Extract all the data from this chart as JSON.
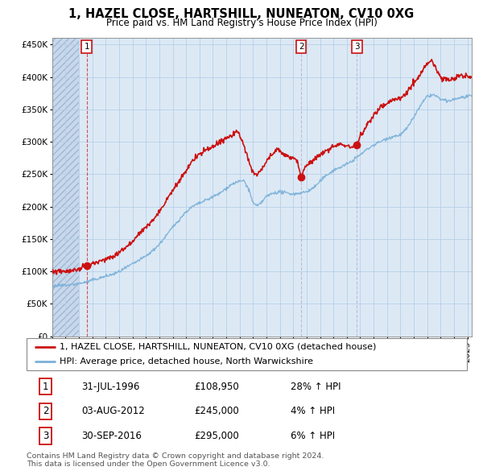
{
  "title": "1, HAZEL CLOSE, HARTSHILL, NUNEATON, CV10 0XG",
  "subtitle": "Price paid vs. HM Land Registry's House Price Index (HPI)",
  "xlim_start": 1994.0,
  "xlim_end": 2025.3,
  "ylim": [
    0,
    460000
  ],
  "yticks": [
    0,
    50000,
    100000,
    150000,
    200000,
    250000,
    300000,
    350000,
    400000,
    450000
  ],
  "ytick_labels": [
    "£0",
    "£50K",
    "£100K",
    "£150K",
    "£200K",
    "£250K",
    "£300K",
    "£350K",
    "£400K",
    "£450K"
  ],
  "sale_dates": [
    1996.58,
    2012.59,
    2016.75
  ],
  "sale_prices": [
    108950,
    245000,
    295000
  ],
  "sale_labels": [
    "1",
    "2",
    "3"
  ],
  "hpi_color": "#7ab0d8",
  "price_color": "#cc1111",
  "marker_color": "#cc1111",
  "vline_color_1": "#cc1111",
  "vline_color_23": "#aaaacc",
  "chart_bg": "#dce9f5",
  "hatch_bg": "#c8d8ec",
  "legend_price_label": "1, HAZEL CLOSE, HARTSHILL, NUNEATON, CV10 0XG (detached house)",
  "legend_hpi_label": "HPI: Average price, detached house, North Warwickshire",
  "table_rows": [
    [
      "1",
      "31-JUL-1996",
      "£108,950",
      "28% ↑ HPI"
    ],
    [
      "2",
      "03-AUG-2012",
      "£245,000",
      "4% ↑ HPI"
    ],
    [
      "3",
      "30-SEP-2016",
      "£295,000",
      "6% ↑ HPI"
    ]
  ],
  "footer": "Contains HM Land Registry data © Crown copyright and database right 2024.\nThis data is licensed under the Open Government Licence v3.0.",
  "grid_color": "#b8cfe8",
  "title_fontsize": 10.5,
  "subtitle_fontsize": 8.5,
  "tick_fontsize": 7.5,
  "legend_fontsize": 8,
  "table_fontsize": 8.5
}
